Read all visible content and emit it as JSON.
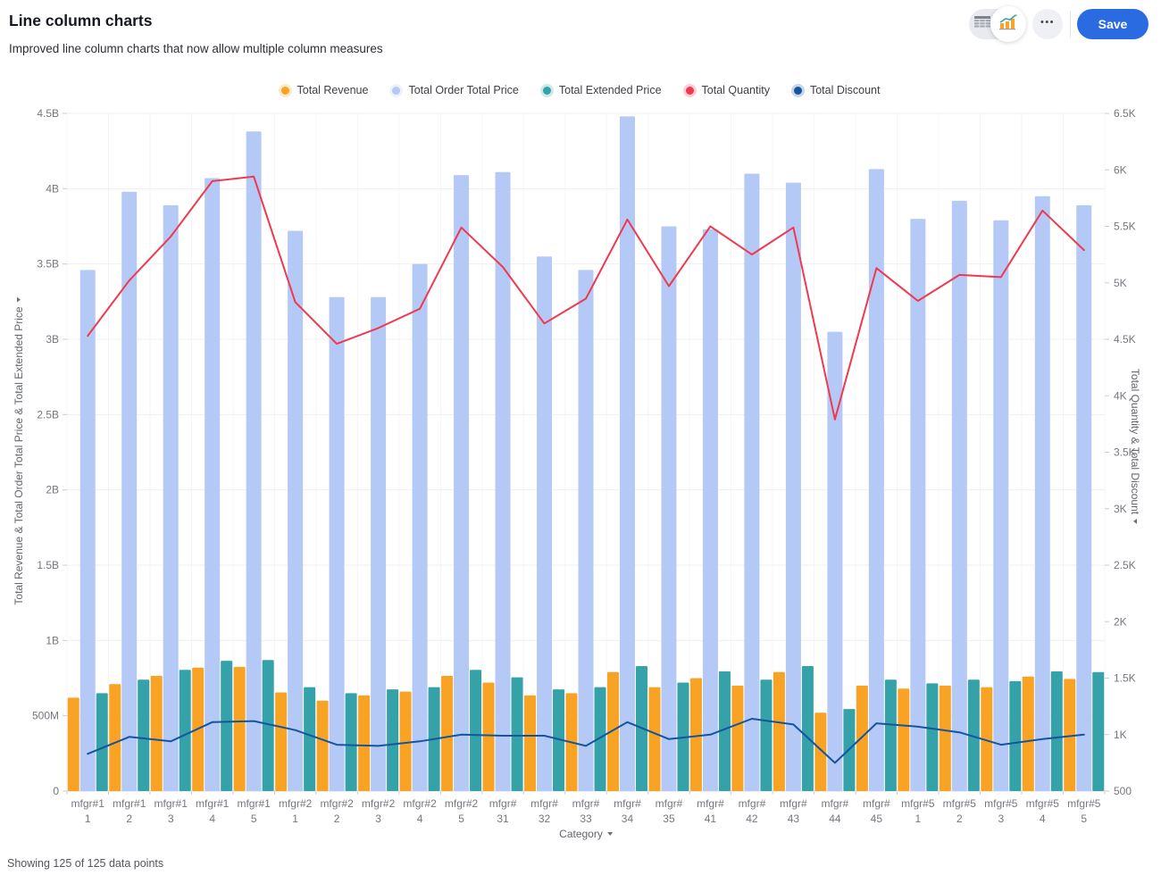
{
  "header": {
    "title": "Line column charts",
    "subtitle": "Improved line column charts that now allow multiple column measures",
    "toolbar": {
      "save_label": "Save",
      "more_label": "•••"
    }
  },
  "footer": {
    "status": "Showing 125 of 125 data points"
  },
  "accent_color": "#2a6be2",
  "chart_data": {
    "type": "bar",
    "subtype": "column-line-combo",
    "legend_position": "top-center",
    "grid": "horizontal",
    "x_axis": {
      "title": "Category"
    },
    "left_axis": {
      "title": "Total Revenue & Total Order Total Price & Total Extended Price",
      "min_value": 0,
      "max_value": 4500000000,
      "tick_labels": [
        "0",
        "500M",
        "1B",
        "1.5B",
        "2B",
        "2.5B",
        "3B",
        "3.5B",
        "4B",
        "4.5B"
      ],
      "tick_values": [
        0,
        500000000,
        1000000000,
        1500000000,
        2000000000,
        2500000000,
        3000000000,
        3500000000,
        4000000000,
        4500000000
      ]
    },
    "right_axis": {
      "title": "Total Quantity & Total Discount",
      "min_value": 500,
      "max_value": 6500,
      "tick_labels": [
        "500",
        "1K",
        "1.5K",
        "2K",
        "2.5K",
        "3K",
        "3.5K",
        "4K",
        "4.5K",
        "5K",
        "5.5K",
        "6K",
        "6.5K"
      ],
      "tick_values": [
        500,
        1000,
        1500,
        2000,
        2500,
        3000,
        3500,
        4000,
        4500,
        5000,
        5500,
        6000,
        6500
      ]
    },
    "categories": [
      [
        "mfgr#1",
        "1"
      ],
      [
        "mfgr#1",
        "2"
      ],
      [
        "mfgr#1",
        "3"
      ],
      [
        "mfgr#1",
        "4"
      ],
      [
        "mfgr#1",
        "5"
      ],
      [
        "mfgr#2",
        "1"
      ],
      [
        "mfgr#2",
        "2"
      ],
      [
        "mfgr#2",
        "3"
      ],
      [
        "mfgr#2",
        "4"
      ],
      [
        "mfgr#2",
        "5"
      ],
      [
        "mfgr#",
        "31"
      ],
      [
        "mfgr#",
        "32"
      ],
      [
        "mfgr#",
        "33"
      ],
      [
        "mfgr#",
        "34"
      ],
      [
        "mfgr#",
        "35"
      ],
      [
        "mfgr#",
        "41"
      ],
      [
        "mfgr#",
        "42"
      ],
      [
        "mfgr#",
        "43"
      ],
      [
        "mfgr#",
        "44"
      ],
      [
        "mfgr#",
        "45"
      ],
      [
        "mfgr#5",
        "1"
      ],
      [
        "mfgr#5",
        "2"
      ],
      [
        "mfgr#5",
        "3"
      ],
      [
        "mfgr#5",
        "4"
      ],
      [
        "mfgr#5",
        "5"
      ]
    ],
    "series": [
      {
        "name": "Total Revenue",
        "type": "bar",
        "axis": "left",
        "color": "#f9a325",
        "multiplier": 1000000,
        "values": [
          620,
          710,
          765,
          820,
          825,
          655,
          600,
          635,
          660,
          765,
          720,
          635,
          650,
          790,
          690,
          750,
          700,
          790,
          520,
          700,
          680,
          700,
          690,
          760,
          745
        ]
      },
      {
        "name": "Total Order Total Price",
        "type": "bar",
        "axis": "left",
        "color": "#b5c9f6",
        "multiplier": 1000000000,
        "values": [
          3.46,
          3.98,
          3.89,
          4.07,
          4.38,
          3.72,
          3.28,
          3.28,
          3.5,
          4.09,
          4.11,
          3.55,
          3.46,
          4.48,
          3.75,
          3.73,
          4.1,
          4.04,
          3.05,
          4.13,
          3.8,
          3.92,
          3.79,
          3.95,
          3.89
        ]
      },
      {
        "name": "Total Extended Price",
        "type": "bar",
        "axis": "left",
        "color": "#35a1a8",
        "multiplier": 1000000,
        "values": [
          650,
          740,
          805,
          865,
          870,
          690,
          650,
          675,
          690,
          805,
          755,
          675,
          690,
          830,
          720,
          795,
          740,
          830,
          545,
          740,
          715,
          740,
          730,
          795,
          790
        ]
      },
      {
        "name": "Total Quantity",
        "type": "line",
        "axis": "right",
        "color": "#f0394f",
        "multiplier": 1,
        "values": [
          4530,
          5020,
          5410,
          5900,
          5940,
          4830,
          4460,
          4600,
          4770,
          5490,
          5140,
          4640,
          4860,
          5560,
          4970,
          5500,
          5250,
          5490,
          3790,
          5130,
          4840,
          5070,
          5050,
          5640,
          5290
        ]
      },
      {
        "name": "Total Discount",
        "type": "line",
        "axis": "right",
        "color": "#1455a0",
        "multiplier": 1,
        "values": [
          830,
          980,
          940,
          1110,
          1120,
          1040,
          910,
          900,
          940,
          1000,
          990,
          990,
          900,
          1110,
          960,
          1000,
          1140,
          1090,
          750,
          1100,
          1070,
          1020,
          910,
          960,
          1000
        ]
      }
    ]
  }
}
